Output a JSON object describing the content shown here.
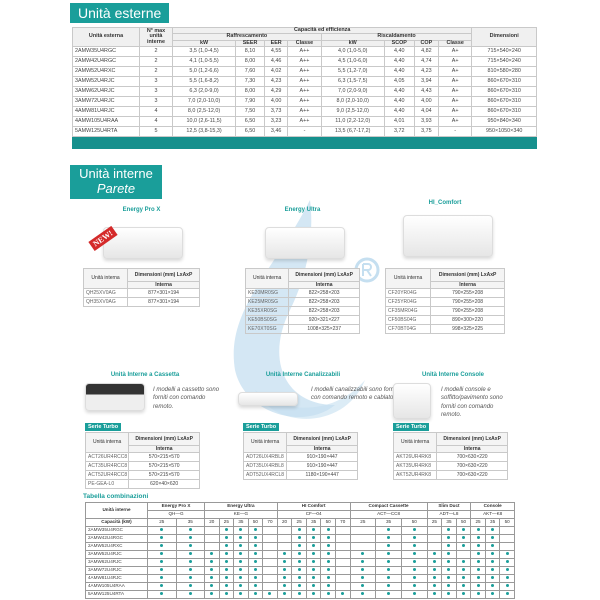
{
  "colors": {
    "accent": "#1a9e9a",
    "watermark": "#c5dff0"
  },
  "external": {
    "title": "Unità esterne",
    "headers": {
      "unit": "Unità esterna",
      "max": "N° max unità interne",
      "group": "Capacità ed efficienza",
      "cooling": "Raffrescamento",
      "heating": "Riscaldamento",
      "dim": "Dimensioni",
      "kw": "kW",
      "seer": "SEER",
      "eer": "EER",
      "classe": "Classe",
      "scop": "SCOP",
      "cop": "COP"
    },
    "rows": [
      [
        "2AMW35U4RGC",
        "2",
        "3,5 (1,0-4,5)",
        "8,10",
        "4,55",
        "A++",
        "4,0 (1,0-5,0)",
        "4,40",
        "4,82",
        "A+",
        "715×540×240"
      ],
      [
        "2AMW42U4RGC",
        "2",
        "4,1 (1,0-5,5)",
        "8,00",
        "4,46",
        "A++",
        "4,5 (1,0-6,0)",
        "4,40",
        "4,74",
        "A+",
        "715×540×240"
      ],
      [
        "2AMW52U4RXC",
        "2",
        "5,0 (1,2-6,6)",
        "7,60",
        "4,02",
        "A++",
        "5,5 (1,2-7,0)",
        "4,40",
        "4,23",
        "A+",
        "810×580×280"
      ],
      [
        "3AMW52U4RJC",
        "3",
        "5,5 (1,6-8,2)",
        "7,30",
        "4,23",
        "A++",
        "6,3 (1,5-7,5)",
        "4,05",
        "3,94",
        "A+",
        "860×670×310"
      ],
      [
        "3AMW62U4RJC",
        "3",
        "6,3 (2,0-9,0)",
        "8,00",
        "4,29",
        "A++",
        "7,0 (2,0-9,0)",
        "4,40",
        "4,43",
        "A+",
        "860×670×310"
      ],
      [
        "3AMW72U4RJC",
        "3",
        "7,0 (2,0-10,0)",
        "7,90",
        "4,00",
        "A++",
        "8,0 (2,0-10,0)",
        "4,40",
        "4,00",
        "A+",
        "860×670×310"
      ],
      [
        "4AMW81U4RJC",
        "4",
        "8,0 (2,5-12,0)",
        "7,50",
        "3,73",
        "A++",
        "9,0 (2,5-12,0)",
        "4,40",
        "4,04",
        "A+",
        "860×670×310"
      ],
      [
        "4AMW105U4RAA",
        "4",
        "10,0 (2,6-11,5)",
        "6,50",
        "3,23",
        "A++",
        "11,0 (2,2-12,0)",
        "4,01",
        "3,93",
        "A+",
        "950×840×340"
      ],
      [
        "5AMW125U4RTA",
        "5",
        "12,5 (3,8-15,3)",
        "6,50",
        "3,46",
        "-",
        "13,5 (6,7-17,2)",
        "3,72",
        "3,75",
        "-",
        "950×1050×340"
      ]
    ]
  },
  "internal": {
    "title": "Unità interne",
    "subtitle": "Parete"
  },
  "mini_headers": {
    "unit": "Unità interna",
    "dim": "Dimensioni (mm) LxAxP",
    "sub": "Interna"
  },
  "wall": [
    {
      "name": "Energy Pro X",
      "badge": "NEW!",
      "rows": [
        [
          "QH25XV0AG",
          "877×301×194"
        ],
        [
          "QH35XV0AG",
          "877×301×194"
        ]
      ]
    },
    {
      "name": "Energy Ultra",
      "rows": [
        [
          "KE20MR0SG",
          "822×258×203"
        ],
        [
          "KE25MR0SG",
          "822×258×203"
        ],
        [
          "KE35XR0SG",
          "822×258×203"
        ],
        [
          "KE50BS0SG",
          "920×321×227"
        ],
        [
          "KE70XT0SG",
          "1008×325×237"
        ]
      ]
    },
    {
      "name": "HI_Comfort",
      "rows": [
        [
          "CF20YR04G",
          "790×255×208"
        ],
        [
          "CF25YR04G",
          "790×255×208"
        ],
        [
          "CF35MR04G",
          "790×255×208"
        ],
        [
          "CF50BS04G",
          "890×300×220"
        ],
        [
          "CF70BT04G",
          "998×325×225"
        ]
      ]
    }
  ],
  "other": [
    {
      "name": "Unità Interne a Cassetta",
      "desc": "I modelli a cassetto sono forniti con comando remoto.",
      "serie": "Serie Turbo",
      "rows": [
        [
          "ACT26UR4RCC8",
          "570×215×570"
        ],
        [
          "ACT35UR4RCC8",
          "570×215×570"
        ],
        [
          "ACT52UR4RCC8",
          "570×215×570"
        ],
        [
          "PE-GEA-L0",
          "620×40×620"
        ]
      ]
    },
    {
      "name": "Unità Interne Canalizzabili",
      "desc": "I modelli canalizzabili sono forniti con comando remoto e cablato.",
      "serie": "Serie Turbo",
      "rows": [
        [
          "ADT26UX4RBL8",
          "910×190×447"
        ],
        [
          "ADT35UX4RBL8",
          "910×190×447"
        ],
        [
          "ADT52UX4RCL8",
          "1180×190×447"
        ]
      ]
    },
    {
      "name": "Unità Interne Console",
      "desc": "I modelli console e soffitto/pavimento sono forniti con comando remoto.",
      "serie": "Serie Turbo",
      "rows": [
        [
          "AKT26UR4RK8",
          "700×630×220"
        ],
        [
          "AKT35UR4RK8",
          "700×630×220"
        ],
        [
          "AKT52UR4RK8",
          "700×630×220"
        ]
      ]
    }
  ],
  "combinations": {
    "title": "Tabella combinazioni",
    "corner": "Unità interne",
    "cap_label": "Capacità (kW)",
    "groups": [
      {
        "name": "Energy Pro X",
        "code": "QH—G",
        "caps": [
          "25",
          "35"
        ]
      },
      {
        "name": "Energy Ultra",
        "code": "KE—G",
        "caps": [
          "20",
          "25",
          "35",
          "50",
          "70"
        ]
      },
      {
        "name": "HI Comfort",
        "code": "CF—04",
        "caps": [
          "20",
          "25",
          "35",
          "50",
          "70"
        ]
      },
      {
        "name": "Compact Cassette",
        "code": "ACT—CC8",
        "caps": [
          "25",
          "35",
          "50"
        ]
      },
      {
        "name": "Slim Duct",
        "code": "ADT—L8",
        "caps": [
          "25",
          "35",
          "50"
        ]
      },
      {
        "name": "Console",
        "code": "AKT—K8",
        "caps": [
          "25",
          "35",
          "50"
        ]
      }
    ],
    "rows": [
      {
        "unit": "2AMW35U4RGC",
        "m": "110111001110011011110"
      },
      {
        "unit": "2AMW42U4RGC",
        "m": "110111001110011011110"
      },
      {
        "unit": "2AMW52U4RXC",
        "m": "110111001110011011110"
      },
      {
        "unit": "3AMW52U4RJC",
        "m": "111111011110111110111"
      },
      {
        "unit": "3AMW62U4RJC",
        "m": "111111011110111111111"
      },
      {
        "unit": "3AMW72U4RJC",
        "m": "111111011110111111111"
      },
      {
        "unit": "4AMW81U4RJC",
        "m": "111111011110111111111"
      },
      {
        "unit": "4AMW105U4RAA",
        "m": "111111011110111111111"
      },
      {
        "unit": "5AMW125U4RTA",
        "m": "111111111111111111111"
      }
    ]
  }
}
